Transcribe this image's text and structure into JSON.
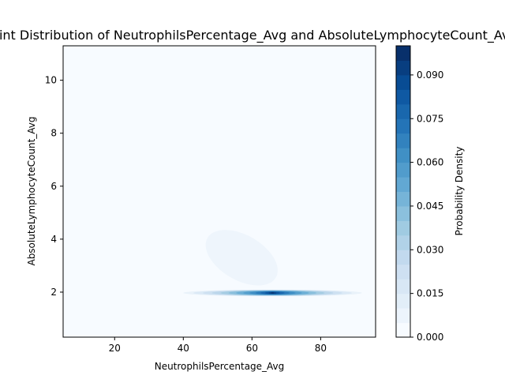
{
  "chart_data": {
    "type": "heatmap",
    "subtype": "filled-contour (2D kernel density)",
    "title": "Joint Distribution of NeutrophilsPercentage_Avg and AbsoluteLymphocyteCount_Avg",
    "xlabel": "NeutrophilsPercentage_Avg",
    "ylabel": "AbsoluteLymphocyteCount_Avg",
    "xlim": [
      5,
      96
    ],
    "ylim": [
      0.3,
      11.3
    ],
    "xticks": [
      20,
      40,
      60,
      80
    ],
    "yticks": [
      2,
      4,
      6,
      8,
      10
    ],
    "colorscale": "Blues",
    "colorbar": {
      "label": "Probability Density",
      "min": 0.0,
      "max": 0.1,
      "ticks": [
        0.0,
        0.015,
        0.03,
        0.045,
        0.06,
        0.075,
        0.09
      ],
      "tick_labels": [
        "0.000",
        "0.015",
        "0.030",
        "0.045",
        "0.060",
        "0.075",
        "0.090"
      ],
      "levels": 20
    },
    "density_regions": [
      {
        "center": [
          66,
          1.97
        ],
        "x_extent": [
          40,
          92
        ],
        "y_extent": [
          1.85,
          2.1
        ],
        "peak_density": 0.1
      },
      {
        "center": [
          57,
          3.3
        ],
        "x_extent": [
          45,
          68
        ],
        "y_extent": [
          2.3,
          4.0
        ],
        "peak_density": 0.008,
        "orientation": "negative correlation"
      }
    ],
    "grid": false,
    "legend": "none"
  }
}
